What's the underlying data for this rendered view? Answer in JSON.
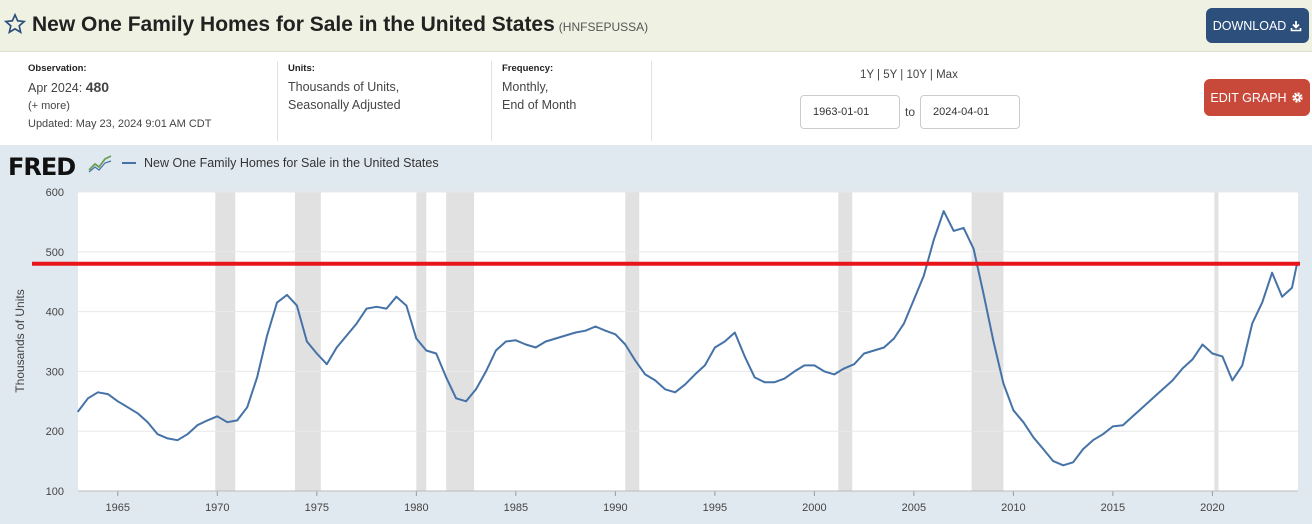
{
  "header": {
    "title": "New One Family Homes for Sale in the United States",
    "series_id": "(HNFSEPUSSA)",
    "download_label": "DOWNLOAD",
    "star_icon": "star-icon",
    "download_icon": "download-icon"
  },
  "meta": {
    "observation_label": "Observation:",
    "observation_date": "Apr 2024:",
    "observation_value": "480",
    "more": "(+ more)",
    "updated": "Updated: May 23, 2024 9:01 AM CDT",
    "units_label": "Units:",
    "units_line1": "Thousands of Units,",
    "units_line2": "Seasonally Adjusted",
    "frequency_label": "Frequency:",
    "frequency_line1": "Monthly,",
    "frequency_line2": "End of Month"
  },
  "controls": {
    "range_links": "1Y | 5Y | 10Y | Max",
    "start_date": "1963-01-01",
    "to_label": "to",
    "end_date": "2024-04-01",
    "edit_label": "EDIT GRAPH",
    "gear_icon": "gear-icon"
  },
  "chart_data": {
    "type": "line",
    "logo": "FRED",
    "title": "",
    "ylabel": "Thousands of Units",
    "xlabel": "",
    "xlim": [
      1963.0,
      2024.3
    ],
    "ylim": [
      100,
      600
    ],
    "y_ticks": [
      "100",
      "200",
      "300",
      "400",
      "500",
      "600"
    ],
    "x_ticks": [
      "1965",
      "1970",
      "1975",
      "1980",
      "1985",
      "1990",
      "1995",
      "2000",
      "2005",
      "2010",
      "2015",
      "2020"
    ],
    "grid": true,
    "line_color": "#4572a7",
    "reference_line": {
      "value": 480,
      "color": "#e8151b"
    },
    "recessions": [
      [
        1969.9,
        1970.9
      ],
      [
        1973.9,
        1975.2
      ],
      [
        1980.0,
        1980.5
      ],
      [
        1981.5,
        1982.9
      ],
      [
        1990.5,
        1991.2
      ],
      [
        2001.2,
        2001.9
      ],
      [
        2007.9,
        2009.5
      ],
      [
        2020.1,
        2020.3
      ]
    ],
    "series": [
      {
        "name": "New One Family Homes for Sale in the United States",
        "x": [
          1963.0,
          1963.5,
          1964.0,
          1964.5,
          1965.0,
          1965.5,
          1966.0,
          1966.5,
          1967.0,
          1967.5,
          1968.0,
          1968.5,
          1969.0,
          1969.5,
          1970.0,
          1970.5,
          1971.0,
          1971.5,
          1972.0,
          1972.5,
          1973.0,
          1973.5,
          1974.0,
          1974.5,
          1975.0,
          1975.5,
          1976.0,
          1976.5,
          1977.0,
          1977.5,
          1978.0,
          1978.5,
          1979.0,
          1979.5,
          1980.0,
          1980.5,
          1981.0,
          1981.5,
          1982.0,
          1982.5,
          1983.0,
          1983.5,
          1984.0,
          1984.5,
          1985.0,
          1985.5,
          1986.0,
          1986.5,
          1987.0,
          1987.5,
          1988.0,
          1988.5,
          1989.0,
          1989.5,
          1990.0,
          1990.5,
          1991.0,
          1991.5,
          1992.0,
          1992.5,
          1993.0,
          1993.5,
          1994.0,
          1994.5,
          1995.0,
          1995.5,
          1996.0,
          1996.5,
          1997.0,
          1997.5,
          1998.0,
          1998.5,
          1999.0,
          1999.5,
          2000.0,
          2000.5,
          2001.0,
          2001.5,
          2002.0,
          2002.5,
          2003.0,
          2003.5,
          2004.0,
          2004.5,
          2005.0,
          2005.5,
          2006.0,
          2006.5,
          2007.0,
          2007.5,
          2008.0,
          2008.5,
          2009.0,
          2009.5,
          2010.0,
          2010.5,
          2011.0,
          2011.5,
          2012.0,
          2012.5,
          2013.0,
          2013.5,
          2014.0,
          2014.5,
          2015.0,
          2015.5,
          2016.0,
          2016.5,
          2017.0,
          2017.5,
          2018.0,
          2018.5,
          2019.0,
          2019.5,
          2020.0,
          2020.5,
          2021.0,
          2021.5,
          2022.0,
          2022.5,
          2023.0,
          2023.5,
          2024.0,
          2024.25
        ],
        "values": [
          233,
          255,
          265,
          262,
          250,
          240,
          230,
          215,
          195,
          188,
          185,
          195,
          210,
          218,
          225,
          215,
          218,
          240,
          290,
          360,
          415,
          428,
          410,
          350,
          330,
          312,
          340,
          360,
          380,
          405,
          408,
          405,
          425,
          410,
          355,
          335,
          330,
          290,
          255,
          250,
          270,
          300,
          335,
          350,
          352,
          345,
          340,
          350,
          355,
          360,
          365,
          368,
          375,
          368,
          362,
          345,
          318,
          295,
          285,
          270,
          265,
          278,
          295,
          310,
          340,
          350,
          365,
          325,
          290,
          282,
          282,
          288,
          300,
          310,
          310,
          300,
          295,
          305,
          312,
          330,
          335,
          340,
          355,
          380,
          420,
          460,
          520,
          568,
          535,
          540,
          505,
          430,
          350,
          280,
          235,
          215,
          190,
          170,
          150,
          143,
          148,
          170,
          185,
          195,
          208,
          210,
          225,
          240,
          255,
          270,
          285,
          305,
          320,
          345,
          330,
          325,
          285,
          310,
          380,
          415,
          465,
          425,
          440,
          480
        ]
      }
    ]
  }
}
